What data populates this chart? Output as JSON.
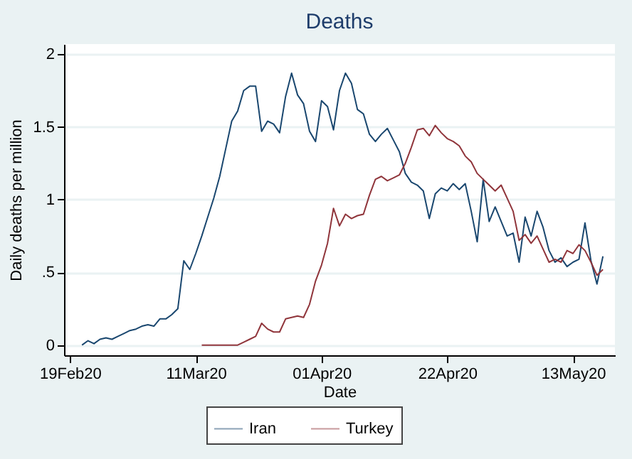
{
  "chart_data": {
    "type": "line",
    "title": "Deaths",
    "xlabel": "Date",
    "ylabel": "Daily deaths per million",
    "x": [
      "2020-02-21",
      "2020-02-22",
      "2020-02-23",
      "2020-02-24",
      "2020-02-25",
      "2020-02-26",
      "2020-02-27",
      "2020-02-28",
      "2020-02-29",
      "2020-03-01",
      "2020-03-02",
      "2020-03-03",
      "2020-03-04",
      "2020-03-05",
      "2020-03-06",
      "2020-03-07",
      "2020-03-08",
      "2020-03-09",
      "2020-03-10",
      "2020-03-11",
      "2020-03-12",
      "2020-03-13",
      "2020-03-14",
      "2020-03-15",
      "2020-03-16",
      "2020-03-17",
      "2020-03-18",
      "2020-03-19",
      "2020-03-20",
      "2020-03-21",
      "2020-03-22",
      "2020-03-23",
      "2020-03-24",
      "2020-03-25",
      "2020-03-26",
      "2020-03-27",
      "2020-03-28",
      "2020-03-29",
      "2020-03-30",
      "2020-03-31",
      "2020-04-01",
      "2020-04-02",
      "2020-04-03",
      "2020-04-04",
      "2020-04-05",
      "2020-04-06",
      "2020-04-07",
      "2020-04-08",
      "2020-04-09",
      "2020-04-10",
      "2020-04-11",
      "2020-04-12",
      "2020-04-13",
      "2020-04-14",
      "2020-04-15",
      "2020-04-16",
      "2020-04-17",
      "2020-04-18",
      "2020-04-19",
      "2020-04-20",
      "2020-04-21",
      "2020-04-22",
      "2020-04-23",
      "2020-04-24",
      "2020-04-25",
      "2020-04-26",
      "2020-04-27",
      "2020-04-28",
      "2020-04-29",
      "2020-04-30",
      "2020-05-01",
      "2020-05-02",
      "2020-05-03",
      "2020-05-04",
      "2020-05-05",
      "2020-05-06",
      "2020-05-07",
      "2020-05-08",
      "2020-05-09",
      "2020-05-10",
      "2020-05-11",
      "2020-05-12",
      "2020-05-13",
      "2020-05-14",
      "2020-05-15",
      "2020-05-16",
      "2020-05-17",
      "2020-05-18"
    ],
    "series": [
      {
        "name": "Iran",
        "color": "#1a476f",
        "values": [
          0,
          0.03,
          0.01,
          0.04,
          0.05,
          0.04,
          0.06,
          0.08,
          0.1,
          0.11,
          0.13,
          0.14,
          0.13,
          0.18,
          0.18,
          0.21,
          0.25,
          0.58,
          0.52,
          0.63,
          0.75,
          0.88,
          1.01,
          1.16,
          1.35,
          1.54,
          1.61,
          1.75,
          1.78,
          1.78,
          1.47,
          1.54,
          1.52,
          1.46,
          1.71,
          1.87,
          1.72,
          1.66,
          1.47,
          1.4,
          1.68,
          1.64,
          1.48,
          1.75,
          1.87,
          1.8,
          1.62,
          1.59,
          1.45,
          1.4,
          1.45,
          1.49,
          1.41,
          1.33,
          1.18,
          1.12,
          1.1,
          1.06,
          0.87,
          1.04,
          1.08,
          1.06,
          1.11,
          1.07,
          1.11,
          0.92,
          0.71,
          1.14,
          0.85,
          0.95,
          0.85,
          0.75,
          0.77,
          0.57,
          0.88,
          0.75,
          0.92,
          0.81,
          0.65,
          0.57,
          0.6,
          0.54,
          0.57,
          0.59,
          0.84,
          0.58,
          0.42,
          0.61
        ]
      },
      {
        "name": "Turkey",
        "color": "#90353b",
        "values": [
          null,
          null,
          null,
          null,
          null,
          null,
          null,
          null,
          null,
          null,
          null,
          null,
          null,
          null,
          null,
          null,
          null,
          null,
          null,
          null,
          0,
          0,
          0,
          0,
          0,
          0,
          0,
          0.02,
          0.04,
          0.06,
          0.15,
          0.11,
          0.09,
          0.09,
          0.18,
          0.19,
          0.2,
          0.19,
          0.28,
          0.44,
          0.55,
          0.7,
          0.94,
          0.82,
          0.9,
          0.87,
          0.89,
          0.9,
          1.03,
          1.14,
          1.16,
          1.13,
          1.15,
          1.17,
          1.25,
          1.36,
          1.48,
          1.49,
          1.44,
          1.51,
          1.46,
          1.42,
          1.4,
          1.37,
          1.3,
          1.26,
          1.18,
          1.14,
          1.1,
          1.06,
          1.1,
          1.01,
          0.92,
          0.72,
          0.76,
          0.7,
          0.75,
          0.66,
          0.57,
          0.59,
          0.57,
          0.65,
          0.63,
          0.69,
          0.65,
          0.57,
          0.48,
          0.52
        ]
      }
    ],
    "xlim": [
      "2020-02-18",
      "2020-05-20"
    ],
    "xticks": [
      {
        "value": "2020-02-19",
        "label": "19Feb20"
      },
      {
        "value": "2020-03-11",
        "label": "11Mar20"
      },
      {
        "value": "2020-04-01",
        "label": "01Apr20"
      },
      {
        "value": "2020-04-22",
        "label": "22Apr20"
      },
      {
        "value": "2020-05-13",
        "label": "13May20"
      }
    ],
    "ylim": [
      -0.07,
      2.07
    ],
    "yticks": [
      0,
      {
        "value": 0.5,
        "label": ".5"
      },
      1,
      {
        "value": 1.5,
        "label": "1.5"
      },
      2
    ],
    "grid": "y",
    "legend": "bottom",
    "line_style": "solid"
  }
}
